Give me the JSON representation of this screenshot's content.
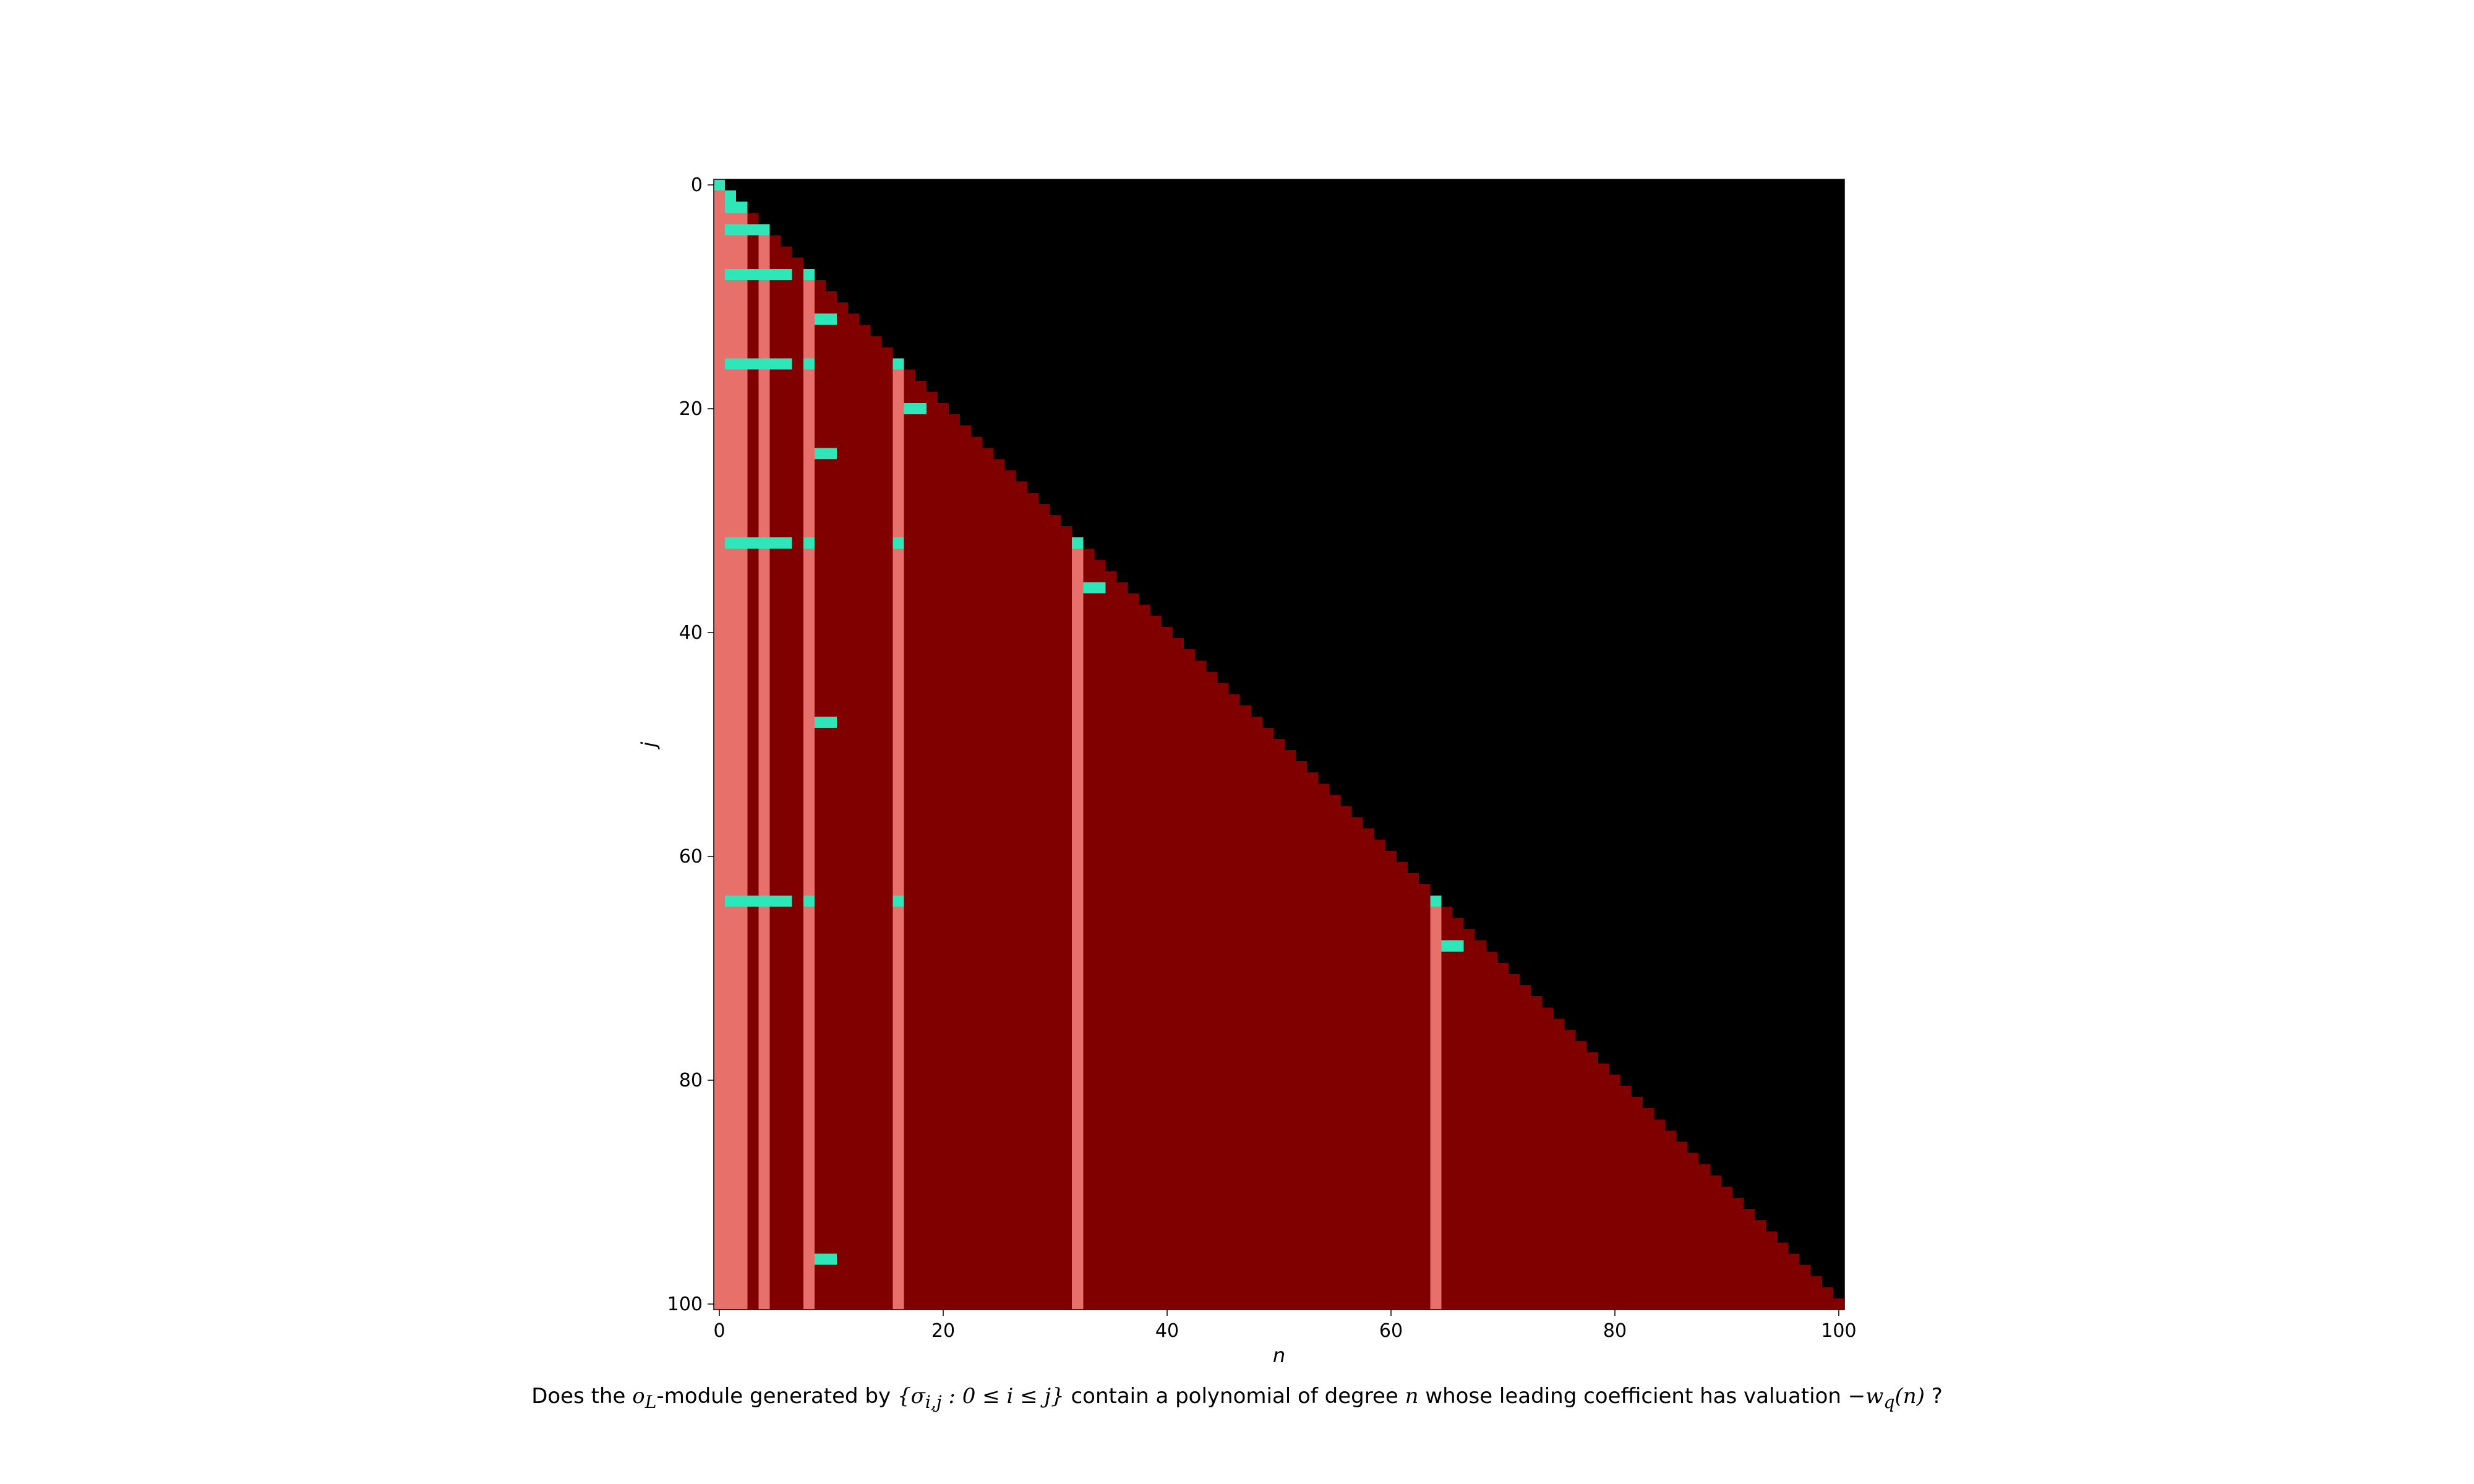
{
  "caption": {
    "p1": "Does the ",
    "m1": "o",
    "m1sub": "L",
    "p2": "-module generated by ",
    "m2": "{σ",
    "m2sub": "i,j",
    "m3": " : 0 ≤ i ≤ j}",
    "p3": " contain a polynomial of degree ",
    "m4": "n",
    "p4": " whose leading coefficient has valuation ",
    "m5": "−w",
    "m5sub": "q",
    "m6": "(n)",
    "p5": " ?"
  },
  "chart_data": {
    "type": "heatmap",
    "title": "",
    "xlabel": "n",
    "ylabel": "j",
    "xlim": [
      0,
      100
    ],
    "ylim": [
      100,
      0
    ],
    "x_ticks": [
      0,
      20,
      40,
      60,
      80,
      100
    ],
    "y_ticks": [
      0,
      20,
      40,
      60,
      80,
      100
    ],
    "grid_size": 101,
    "colors": {
      "upper_triangle_n_gt_j": "#000000",
      "default_n_le_j": "#800000",
      "highlight_column": "#e8706a",
      "answer_yes": "#2ee6b8"
    },
    "highlight_columns": [
      0,
      1,
      2,
      4,
      8,
      16,
      32,
      64
    ],
    "yes_cells": [
      {
        "j": 0,
        "n": [
          0
        ]
      },
      {
        "j": 1,
        "n": [
          1
        ]
      },
      {
        "j": 2,
        "n": [
          1,
          2
        ]
      },
      {
        "j": 4,
        "n": [
          1,
          2,
          3,
          4
        ]
      },
      {
        "j": 8,
        "n": [
          1,
          2,
          3,
          4,
          5,
          6,
          8
        ]
      },
      {
        "j": 12,
        "n": [
          9,
          10
        ]
      },
      {
        "j": 16,
        "n": [
          1,
          2,
          3,
          4,
          5,
          6,
          8,
          16
        ]
      },
      {
        "j": 20,
        "n": [
          17,
          18
        ]
      },
      {
        "j": 24,
        "n": [
          9,
          10
        ]
      },
      {
        "j": 32,
        "n": [
          1,
          2,
          3,
          4,
          5,
          6,
          8,
          16,
          32
        ]
      },
      {
        "j": 36,
        "n": [
          33,
          34
        ]
      },
      {
        "j": 48,
        "n": [
          9,
          10
        ]
      },
      {
        "j": 64,
        "n": [
          1,
          2,
          3,
          4,
          5,
          6,
          8,
          16,
          64
        ]
      },
      {
        "j": 68,
        "n": [
          65,
          66
        ]
      },
      {
        "j": 96,
        "n": [
          9,
          10
        ]
      }
    ]
  }
}
